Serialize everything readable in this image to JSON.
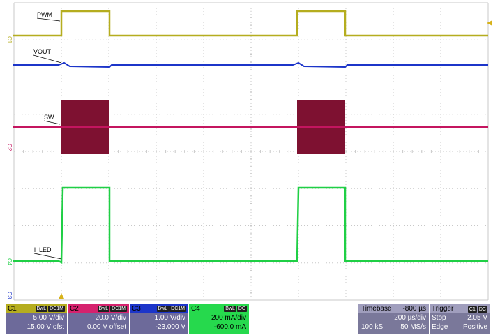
{
  "colors": {
    "ch1": "#b5ad1f",
    "ch2": "#c4155f",
    "ch3": "#1c35c9",
    "ch4": "#1fcf45",
    "sw_burst": "#7e1131",
    "grid": "#c8c8c8"
  },
  "traces": {
    "pwm_label": "PWM",
    "vout_label": "VOUT",
    "sw_label": "SW",
    "iled_label": "i_LED"
  },
  "markers": {
    "c1": "C1",
    "c2": "C2",
    "c3": "C3",
    "c4": "C4"
  },
  "channels": [
    {
      "name": "C1",
      "badges": [
        "BwL",
        "DC1M"
      ],
      "lines": [
        "5.00 V/div",
        "15.00 V ofst"
      ]
    },
    {
      "name": "C2",
      "badges": [
        "BwL",
        "DC1M"
      ],
      "lines": [
        "20.0 V/div",
        "0.00 V offset"
      ]
    },
    {
      "name": "C3",
      "badges": [
        "BwL",
        "DC1M"
      ],
      "lines": [
        "1.00 V/div",
        "-23.000 V"
      ]
    },
    {
      "name": "C4",
      "badges": [
        "BwL",
        "DC"
      ],
      "lines": [
        "200 mA/div",
        "-600.0 mA"
      ]
    }
  ],
  "timebase": {
    "label": "Timebase",
    "offset": "-800 µs",
    "per_div": "200 µs/div",
    "samples": "100 kS",
    "rate": "50 MS/s"
  },
  "trigger": {
    "label": "Trigger",
    "badges": [
      "C1",
      "DC"
    ],
    "mode": "Stop",
    "level": "2.05 V",
    "type": "Edge",
    "slope": "Positive"
  }
}
